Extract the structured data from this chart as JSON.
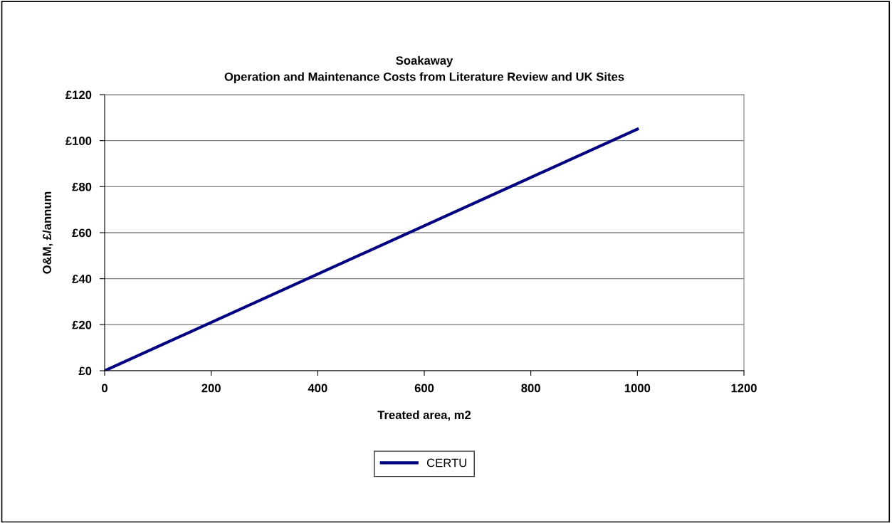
{
  "chart_data": {
    "type": "line",
    "title": "Soakaway\nOperation and Maintenance Costs from Literature Review and UK Sites",
    "xlabel": "Treated area, m2",
    "ylabel": "O&M, £/annum",
    "x": [
      0,
      1000
    ],
    "series": [
      {
        "name": "CERTU",
        "color": "#000080",
        "values": [
          0,
          105
        ]
      }
    ],
    "xlim": [
      0,
      1200
    ],
    "xticks": [
      0,
      200,
      400,
      600,
      800,
      1000,
      1200
    ],
    "ylim": [
      0,
      120
    ],
    "yticks": [
      {
        "value": 0,
        "label": "£0"
      },
      {
        "value": 20,
        "label": "£20"
      },
      {
        "value": 40,
        "label": "£40"
      },
      {
        "value": 60,
        "label": "£60"
      },
      {
        "value": 80,
        "label": "£80"
      },
      {
        "value": 100,
        "label": "£100"
      },
      {
        "value": 120,
        "label": "£120"
      }
    ],
    "grid": "y",
    "legend": "bottom",
    "marker": "none",
    "line_style": "solid"
  }
}
